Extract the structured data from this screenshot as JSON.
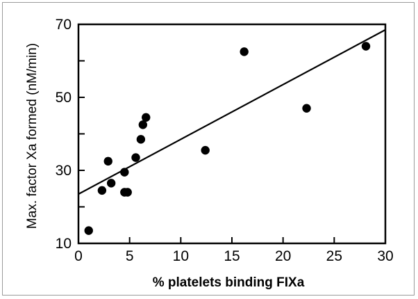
{
  "chart_data": {
    "type": "scatter",
    "xlabel": "% platelets binding FIXa",
    "ylabel": "Max. factor Xa formed (nM/min)",
    "xlim": [
      0,
      30
    ],
    "ylim": [
      10,
      70
    ],
    "x_ticks": [
      0,
      5,
      10,
      15,
      20,
      25,
      30
    ],
    "y_ticks": [
      10,
      30,
      50,
      70
    ],
    "y_minor_ticks": [
      20,
      40,
      60
    ],
    "grid": false,
    "legend": "none",
    "points": [
      {
        "x": 1.0,
        "y": 13.5
      },
      {
        "x": 2.3,
        "y": 24.5
      },
      {
        "x": 2.9,
        "y": 32.5
      },
      {
        "x": 3.2,
        "y": 26.5
      },
      {
        "x": 4.5,
        "y": 29.5
      },
      {
        "x": 4.5,
        "y": 24.0
      },
      {
        "x": 4.8,
        "y": 24.0
      },
      {
        "x": 5.6,
        "y": 33.5
      },
      {
        "x": 6.1,
        "y": 38.5
      },
      {
        "x": 6.3,
        "y": 42.5
      },
      {
        "x": 6.6,
        "y": 44.5
      },
      {
        "x": 12.4,
        "y": 35.5
      },
      {
        "x": 16.2,
        "y": 62.5
      },
      {
        "x": 22.3,
        "y": 47.0
      },
      {
        "x": 28.1,
        "y": 64.0
      }
    ],
    "trendline": {
      "x": [
        0,
        30
      ],
      "y": [
        23.5,
        68.5
      ]
    },
    "colors": {
      "marker": "#000000",
      "line": "#000000",
      "axis": "#000000"
    }
  }
}
